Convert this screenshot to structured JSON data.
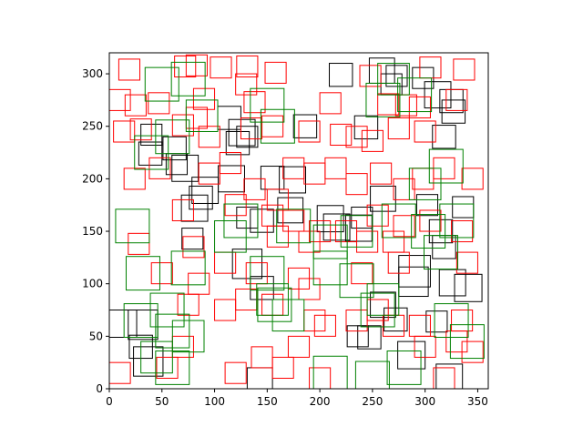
{
  "chart_data": {
    "type": "scatter",
    "title": "",
    "xlabel": "",
    "ylabel": "",
    "xlim": [
      0,
      360
    ],
    "ylim": [
      0,
      320
    ],
    "x_ticks": [
      0,
      50,
      100,
      150,
      200,
      250,
      300,
      350
    ],
    "y_ticks": [
      0,
      50,
      100,
      150,
      200,
      250,
      300
    ],
    "grid": false,
    "marker": "hollow-square",
    "colors": {
      "black": "#000000",
      "red": "#ff0000",
      "green": "#008000"
    },
    "series": [
      {
        "color": "black",
        "points": [
          {
            "x": 312,
            "y": 280,
            "side": 25
          },
          {
            "x": 325,
            "y": 274,
            "side": 22
          },
          {
            "x": 327,
            "y": 264,
            "side": 22
          },
          {
            "x": 268,
            "y": 290,
            "side": 20
          },
          {
            "x": 273,
            "y": 298,
            "side": 20
          },
          {
            "x": 298,
            "y": 296,
            "side": 20
          },
          {
            "x": 259,
            "y": 303,
            "side": 24
          },
          {
            "x": 220,
            "y": 299,
            "side": 22
          },
          {
            "x": 244,
            "y": 249,
            "side": 22
          },
          {
            "x": 186,
            "y": 250,
            "side": 22
          },
          {
            "x": 318,
            "y": 240,
            "side": 22
          },
          {
            "x": 40,
            "y": 242,
            "side": 20
          },
          {
            "x": 39,
            "y": 224,
            "side": 22
          },
          {
            "x": 62,
            "y": 229,
            "side": 22
          },
          {
            "x": 64,
            "y": 214,
            "side": 20
          },
          {
            "x": 72,
            "y": 210,
            "side": 25
          },
          {
            "x": 114,
            "y": 258,
            "side": 22
          },
          {
            "x": 126,
            "y": 244,
            "side": 25
          },
          {
            "x": 122,
            "y": 234,
            "side": 22
          },
          {
            "x": 131,
            "y": 240,
            "side": 20
          },
          {
            "x": 155,
            "y": 201,
            "side": 22
          },
          {
            "x": 174,
            "y": 199,
            "side": 25
          },
          {
            "x": 116,
            "y": 200,
            "side": 25
          },
          {
            "x": 91,
            "y": 189,
            "side": 25
          },
          {
            "x": 81,
            "y": 172,
            "side": 25
          },
          {
            "x": 87,
            "y": 182,
            "side": 22
          },
          {
            "x": 131,
            "y": 163,
            "side": 20
          },
          {
            "x": 145,
            "y": 160,
            "side": 22
          },
          {
            "x": 172,
            "y": 170,
            "side": 24
          },
          {
            "x": 210,
            "y": 162,
            "side": 25
          },
          {
            "x": 216,
            "y": 154,
            "side": 25
          },
          {
            "x": 237,
            "y": 153,
            "side": 25
          },
          {
            "x": 240,
            "y": 163,
            "side": 20
          },
          {
            "x": 260,
            "y": 181,
            "side": 24
          },
          {
            "x": 302,
            "y": 175,
            "side": 20
          },
          {
            "x": 336,
            "y": 173,
            "side": 20
          },
          {
            "x": 315,
            "y": 150,
            "side": 22
          },
          {
            "x": 318,
            "y": 135,
            "side": 22
          },
          {
            "x": 290,
            "y": 112,
            "side": 30
          },
          {
            "x": 289,
            "y": 102,
            "side": 28
          },
          {
            "x": 326,
            "y": 101,
            "side": 25
          },
          {
            "x": 341,
            "y": 96,
            "side": 26
          },
          {
            "x": 79,
            "y": 143,
            "side": 20
          },
          {
            "x": 131,
            "y": 119,
            "side": 28
          },
          {
            "x": 145,
            "y": 96,
            "side": 22
          },
          {
            "x": 260,
            "y": 80,
            "side": 24
          },
          {
            "x": 272,
            "y": 66,
            "side": 22
          },
          {
            "x": 247,
            "y": 49,
            "side": 22
          },
          {
            "x": 236,
            "y": 50,
            "side": 20
          },
          {
            "x": 13,
            "y": 62,
            "side": 26
          },
          {
            "x": 32,
            "y": 61,
            "side": 28
          },
          {
            "x": 30,
            "y": 40,
            "side": 22
          },
          {
            "x": 37,
            "y": 26,
            "side": 28
          },
          {
            "x": 287,
            "y": 32,
            "side": 26
          },
          {
            "x": 323,
            "y": 11,
            "side": 25
          },
          {
            "x": 143,
            "y": 8,
            "side": 24
          },
          {
            "x": 311,
            "y": 64,
            "side": 20
          }
        ]
      },
      {
        "color": "red",
        "points": [
          {
            "x": 19,
            "y": 304,
            "side": 20
          },
          {
            "x": 72,
            "y": 307,
            "side": 20
          },
          {
            "x": 83,
            "y": 308,
            "side": 20
          },
          {
            "x": 106,
            "y": 306,
            "side": 20
          },
          {
            "x": 131,
            "y": 307,
            "side": 20
          },
          {
            "x": 158,
            "y": 301,
            "side": 20
          },
          {
            "x": 248,
            "y": 298,
            "side": 20
          },
          {
            "x": 305,
            "y": 306,
            "side": 20
          },
          {
            "x": 337,
            "y": 304,
            "side": 20
          },
          {
            "x": 10,
            "y": 275,
            "side": 20
          },
          {
            "x": 25,
            "y": 270,
            "side": 20
          },
          {
            "x": 47,
            "y": 272,
            "side": 20
          },
          {
            "x": 90,
            "y": 276,
            "side": 20
          },
          {
            "x": 130,
            "y": 290,
            "side": 20
          },
          {
            "x": 138,
            "y": 273,
            "side": 20
          },
          {
            "x": 210,
            "y": 272,
            "side": 20
          },
          {
            "x": 265,
            "y": 271,
            "side": 20
          },
          {
            "x": 282,
            "y": 270,
            "side": 20
          },
          {
            "x": 295,
            "y": 268,
            "side": 20
          },
          {
            "x": 330,
            "y": 275,
            "side": 20
          },
          {
            "x": 14,
            "y": 245,
            "side": 20
          },
          {
            "x": 30,
            "y": 247,
            "side": 20
          },
          {
            "x": 70,
            "y": 251,
            "side": 20
          },
          {
            "x": 83,
            "y": 258,
            "side": 20
          },
          {
            "x": 95,
            "y": 240,
            "side": 20
          },
          {
            "x": 135,
            "y": 248,
            "side": 20
          },
          {
            "x": 155,
            "y": 250,
            "side": 20
          },
          {
            "x": 190,
            "y": 245,
            "side": 20
          },
          {
            "x": 220,
            "y": 242,
            "side": 20
          },
          {
            "x": 235,
            "y": 240,
            "side": 20
          },
          {
            "x": 250,
            "y": 236,
            "side": 20
          },
          {
            "x": 275,
            "y": 248,
            "side": 20
          },
          {
            "x": 300,
            "y": 245,
            "side": 20
          },
          {
            "x": 24,
            "y": 200,
            "side": 20
          },
          {
            "x": 48,
            "y": 210,
            "side": 20
          },
          {
            "x": 95,
            "y": 205,
            "side": 20
          },
          {
            "x": 115,
            "y": 215,
            "side": 20
          },
          {
            "x": 138,
            "y": 190,
            "side": 20
          },
          {
            "x": 160,
            "y": 180,
            "side": 20
          },
          {
            "x": 175,
            "y": 210,
            "side": 20
          },
          {
            "x": 195,
            "y": 205,
            "side": 20
          },
          {
            "x": 215,
            "y": 210,
            "side": 20
          },
          {
            "x": 235,
            "y": 195,
            "side": 20
          },
          {
            "x": 258,
            "y": 205,
            "side": 20
          },
          {
            "x": 280,
            "y": 190,
            "side": 20
          },
          {
            "x": 298,
            "y": 200,
            "side": 20
          },
          {
            "x": 318,
            "y": 210,
            "side": 20
          },
          {
            "x": 345,
            "y": 200,
            "side": 20
          },
          {
            "x": 70,
            "y": 170,
            "side": 20
          },
          {
            "x": 120,
            "y": 175,
            "side": 20
          },
          {
            "x": 155,
            "y": 165,
            "side": 20
          },
          {
            "x": 175,
            "y": 160,
            "side": 20
          },
          {
            "x": 200,
            "y": 150,
            "side": 20
          },
          {
            "x": 225,
            "y": 150,
            "side": 20
          },
          {
            "x": 255,
            "y": 165,
            "side": 20
          },
          {
            "x": 280,
            "y": 155,
            "side": 20
          },
          {
            "x": 305,
            "y": 160,
            "side": 20
          },
          {
            "x": 335,
            "y": 150,
            "side": 20
          },
          {
            "x": 28,
            "y": 138,
            "side": 20
          },
          {
            "x": 80,
            "y": 135,
            "side": 20
          },
          {
            "x": 160,
            "y": 145,
            "side": 20
          },
          {
            "x": 190,
            "y": 140,
            "side": 20
          },
          {
            "x": 245,
            "y": 140,
            "side": 20
          },
          {
            "x": 270,
            "y": 140,
            "side": 20
          },
          {
            "x": 50,
            "y": 110,
            "side": 20
          },
          {
            "x": 85,
            "y": 100,
            "side": 20
          },
          {
            "x": 110,
            "y": 120,
            "side": 20
          },
          {
            "x": 140,
            "y": 110,
            "side": 20
          },
          {
            "x": 180,
            "y": 105,
            "side": 20
          },
          {
            "x": 190,
            "y": 95,
            "side": 20
          },
          {
            "x": 240,
            "y": 110,
            "side": 20
          },
          {
            "x": 275,
            "y": 120,
            "side": 20
          },
          {
            "x": 340,
            "y": 120,
            "side": 20
          },
          {
            "x": 75,
            "y": 80,
            "side": 20
          },
          {
            "x": 110,
            "y": 75,
            "side": 20
          },
          {
            "x": 130,
            "y": 85,
            "side": 20
          },
          {
            "x": 155,
            "y": 80,
            "side": 20
          },
          {
            "x": 195,
            "y": 65,
            "side": 20
          },
          {
            "x": 205,
            "y": 60,
            "side": 20
          },
          {
            "x": 235,
            "y": 65,
            "side": 20
          },
          {
            "x": 255,
            "y": 75,
            "side": 20
          },
          {
            "x": 270,
            "y": 60,
            "side": 20
          },
          {
            "x": 295,
            "y": 60,
            "side": 20
          },
          {
            "x": 335,
            "y": 65,
            "side": 20
          },
          {
            "x": 10,
            "y": 15,
            "side": 20
          },
          {
            "x": 55,
            "y": 20,
            "side": 20
          },
          {
            "x": 70,
            "y": 40,
            "side": 20
          },
          {
            "x": 120,
            "y": 15,
            "side": 20
          },
          {
            "x": 145,
            "y": 30,
            "side": 20
          },
          {
            "x": 165,
            "y": 20,
            "side": 20
          },
          {
            "x": 180,
            "y": 40,
            "side": 20
          },
          {
            "x": 200,
            "y": 10,
            "side": 20
          },
          {
            "x": 300,
            "y": 40,
            "side": 20
          },
          {
            "x": 318,
            "y": 10,
            "side": 20
          },
          {
            "x": 345,
            "y": 35,
            "side": 20
          },
          {
            "x": 330,
            "y": 45,
            "side": 20
          }
        ]
      },
      {
        "color": "green",
        "points": [
          {
            "x": 50,
            "y": 290,
            "side": 32
          },
          {
            "x": 75,
            "y": 295,
            "side": 32
          },
          {
            "x": 150,
            "y": 270,
            "side": 32
          },
          {
            "x": 260,
            "y": 275,
            "side": 32
          },
          {
            "x": 290,
            "y": 280,
            "side": 32
          },
          {
            "x": 270,
            "y": 295,
            "side": 30
          },
          {
            "x": 160,
            "y": 250,
            "side": 32
          },
          {
            "x": 60,
            "y": 240,
            "side": 32
          },
          {
            "x": 88,
            "y": 260,
            "side": 30
          },
          {
            "x": 320,
            "y": 212,
            "side": 32
          },
          {
            "x": 300,
            "y": 195,
            "side": 30
          },
          {
            "x": 40,
            "y": 225,
            "side": 32
          },
          {
            "x": 22,
            "y": 155,
            "side": 32
          },
          {
            "x": 125,
            "y": 160,
            "side": 32
          },
          {
            "x": 115,
            "y": 145,
            "side": 30
          },
          {
            "x": 175,
            "y": 155,
            "side": 32
          },
          {
            "x": 210,
            "y": 140,
            "side": 32
          },
          {
            "x": 235,
            "y": 150,
            "side": 30
          },
          {
            "x": 275,
            "y": 160,
            "side": 32
          },
          {
            "x": 303,
            "y": 150,
            "side": 32
          },
          {
            "x": 315,
            "y": 130,
            "side": 32
          },
          {
            "x": 330,
            "y": 160,
            "side": 32
          },
          {
            "x": 32,
            "y": 110,
            "side": 32
          },
          {
            "x": 75,
            "y": 115,
            "side": 32
          },
          {
            "x": 150,
            "y": 110,
            "side": 32
          },
          {
            "x": 210,
            "y": 115,
            "side": 32
          },
          {
            "x": 235,
            "y": 103,
            "side": 32
          },
          {
            "x": 157,
            "y": 80,
            "side": 32
          },
          {
            "x": 170,
            "y": 70,
            "side": 30
          },
          {
            "x": 30,
            "y": 65,
            "side": 32
          },
          {
            "x": 55,
            "y": 75,
            "side": 32
          },
          {
            "x": 60,
            "y": 55,
            "side": 32
          },
          {
            "x": 75,
            "y": 50,
            "side": 30
          },
          {
            "x": 155,
            "y": 85,
            "side": 30
          },
          {
            "x": 255,
            "y": 75,
            "side": 32
          },
          {
            "x": 260,
            "y": 85,
            "side": 30
          },
          {
            "x": 325,
            "y": 65,
            "side": 32
          },
          {
            "x": 340,
            "y": 45,
            "side": 32
          },
          {
            "x": 280,
            "y": 20,
            "side": 32
          },
          {
            "x": 45,
            "y": 30,
            "side": 30
          },
          {
            "x": 60,
            "y": 20,
            "side": 32
          },
          {
            "x": 210,
            "y": 15,
            "side": 32
          },
          {
            "x": 250,
            "y": 10,
            "side": 32
          }
        ]
      }
    ]
  }
}
